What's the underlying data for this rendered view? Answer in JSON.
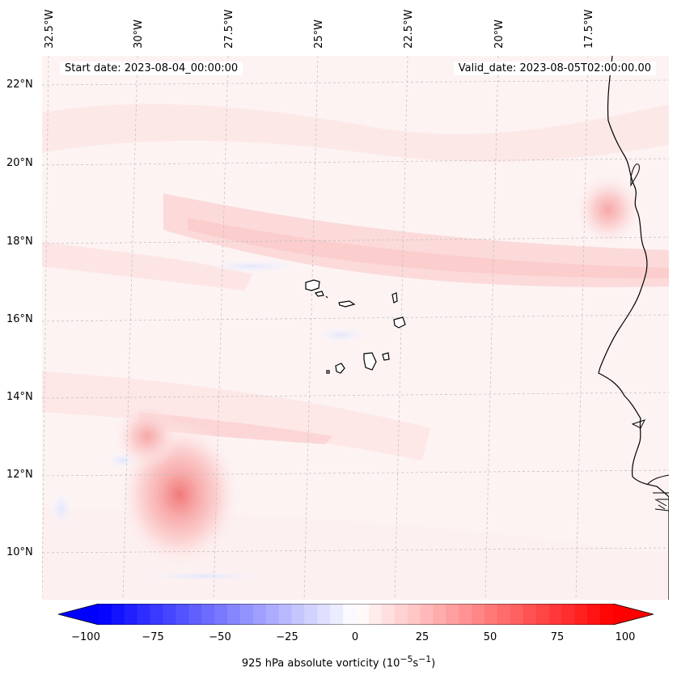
{
  "map": {
    "start_date": "Start date: 2023-08-04_00:00:00",
    "valid_date": "Valid_date: 2023-08-05T02:00:00.00",
    "lon_labels": [
      "32.5°W",
      "30°W",
      "27.5°W",
      "25°W",
      "22.5°W",
      "20°W",
      "17.5°W"
    ],
    "lat_labels": [
      "22°N",
      "20°N",
      "18°N",
      "16°N",
      "14°N",
      "12°N",
      "10°N"
    ],
    "lon_range": [
      -32.5,
      -15.5
    ],
    "lat_range": [
      9,
      22.8
    ],
    "field": "925 hPa absolute vorticity"
  },
  "colorbar": {
    "ticks": [
      "−100",
      "−75",
      "−50",
      "−25",
      "0",
      "25",
      "50",
      "75",
      "100"
    ],
    "min": -100,
    "max": 100,
    "low_color": "#0000ff",
    "mid_color": "#ffffff",
    "high_color": "#ff0000",
    "label": "925 hPa absolute vorticity (10",
    "label_exp1": "−5",
    "label_mid": "s",
    "label_exp2": "−1",
    "label_end": ")"
  },
  "features": {
    "vortex_main": {
      "lon": -29.3,
      "lat": 11.5,
      "value": 40
    },
    "vortex_coast": {
      "lon": -17.3,
      "lat": 18.9,
      "value": 25
    },
    "land_color": "#ffffff",
    "coast_color": "#000000"
  }
}
